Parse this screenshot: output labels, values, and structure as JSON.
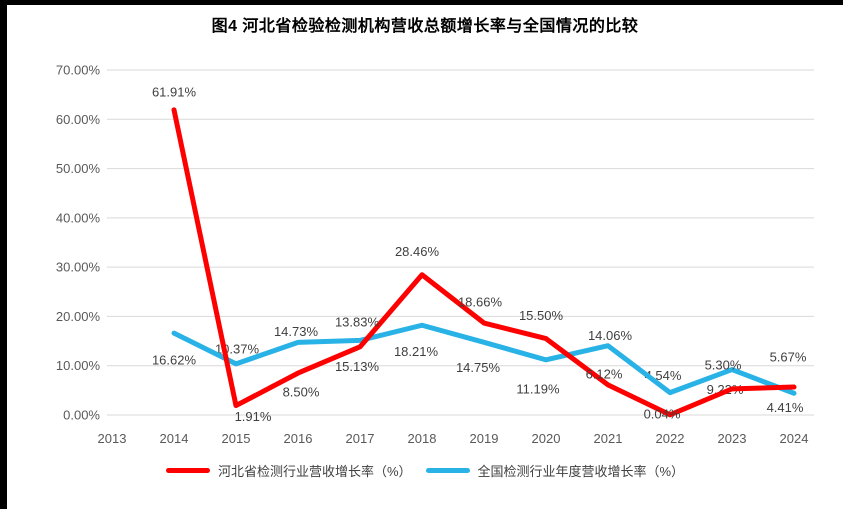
{
  "title": "图4  河北省检验检测机构营收总额增长率与全国情况的比较",
  "chart_data": {
    "type": "line",
    "title": "图4  河北省检验检测机构营收总额增长率与全国情况的比较",
    "categories": [
      "2013",
      "2014",
      "2015",
      "2016",
      "2017",
      "2018",
      "2019",
      "2020",
      "2021",
      "2022",
      "2023",
      "2024"
    ],
    "ylim": [
      0,
      70
    ],
    "y_tick_step": 10,
    "y_tick_labels": [
      "0.00%",
      "10.00%",
      "20.00%",
      "30.00%",
      "40.00%",
      "50.00%",
      "60.00%",
      "70.00%"
    ],
    "grid": true,
    "legend_position": "bottom",
    "grid_color": "#d9d9d9",
    "axis_label_color": "#595959",
    "data_label_color": "#3f3f3f",
    "series": [
      {
        "name": "河北省检测行业营收增长率（%）",
        "color": "#fe0000",
        "start_category": "2014",
        "values": [
          61.91,
          1.91,
          8.5,
          13.83,
          28.46,
          18.66,
          15.5,
          6.12,
          0.04,
          5.3,
          5.67
        ],
        "labels": [
          "61.91%",
          "1.91%",
          "8.50%",
          "13.83%",
          "28.46%",
          "18.66%",
          "15.50%",
          "6.12%",
          "0.04%",
          "5.30%",
          "5.67%"
        ],
        "label_offsets": [
          [
            0,
            -18
          ],
          [
            17,
            11
          ],
          [
            3,
            19
          ],
          [
            -3,
            -25
          ],
          [
            -5,
            -23
          ],
          [
            -4,
            -21
          ],
          [
            -5,
            -23
          ],
          [
            -4,
            -11
          ],
          [
            -8,
            -1
          ],
          [
            -9,
            -24
          ],
          [
            -6,
            -30
          ]
        ]
      },
      {
        "name": "全国检测行业年度营收增长率（%）",
        "color": "#29b2e6",
        "start_category": "2014",
        "values": [
          16.62,
          10.37,
          14.73,
          15.13,
          18.21,
          14.75,
          11.19,
          14.06,
          4.54,
          9.22,
          4.41
        ],
        "labels": [
          "16.62%",
          "10.37%",
          "14.73%",
          "15.13%",
          "18.21%",
          "14.75%",
          "11.19%",
          "14.06%",
          "4.54%",
          "9.22%",
          "4.41%"
        ],
        "label_offsets": [
          [
            0,
            27
          ],
          [
            1,
            -15
          ],
          [
            -2,
            -11
          ],
          [
            -3,
            26
          ],
          [
            -6,
            26
          ],
          [
            -6,
            25
          ],
          [
            -8,
            29
          ],
          [
            2,
            -10
          ],
          [
            -7,
            -17
          ],
          [
            -7,
            20
          ],
          [
            -9,
            14
          ]
        ]
      }
    ]
  },
  "legend": {
    "items": [
      {
        "label": "河北省检测行业营收增长率（%）",
        "color": "#fe0000"
      },
      {
        "label": "全国检测行业年度营收增长率（%）",
        "color": "#29b2e6"
      }
    ]
  }
}
